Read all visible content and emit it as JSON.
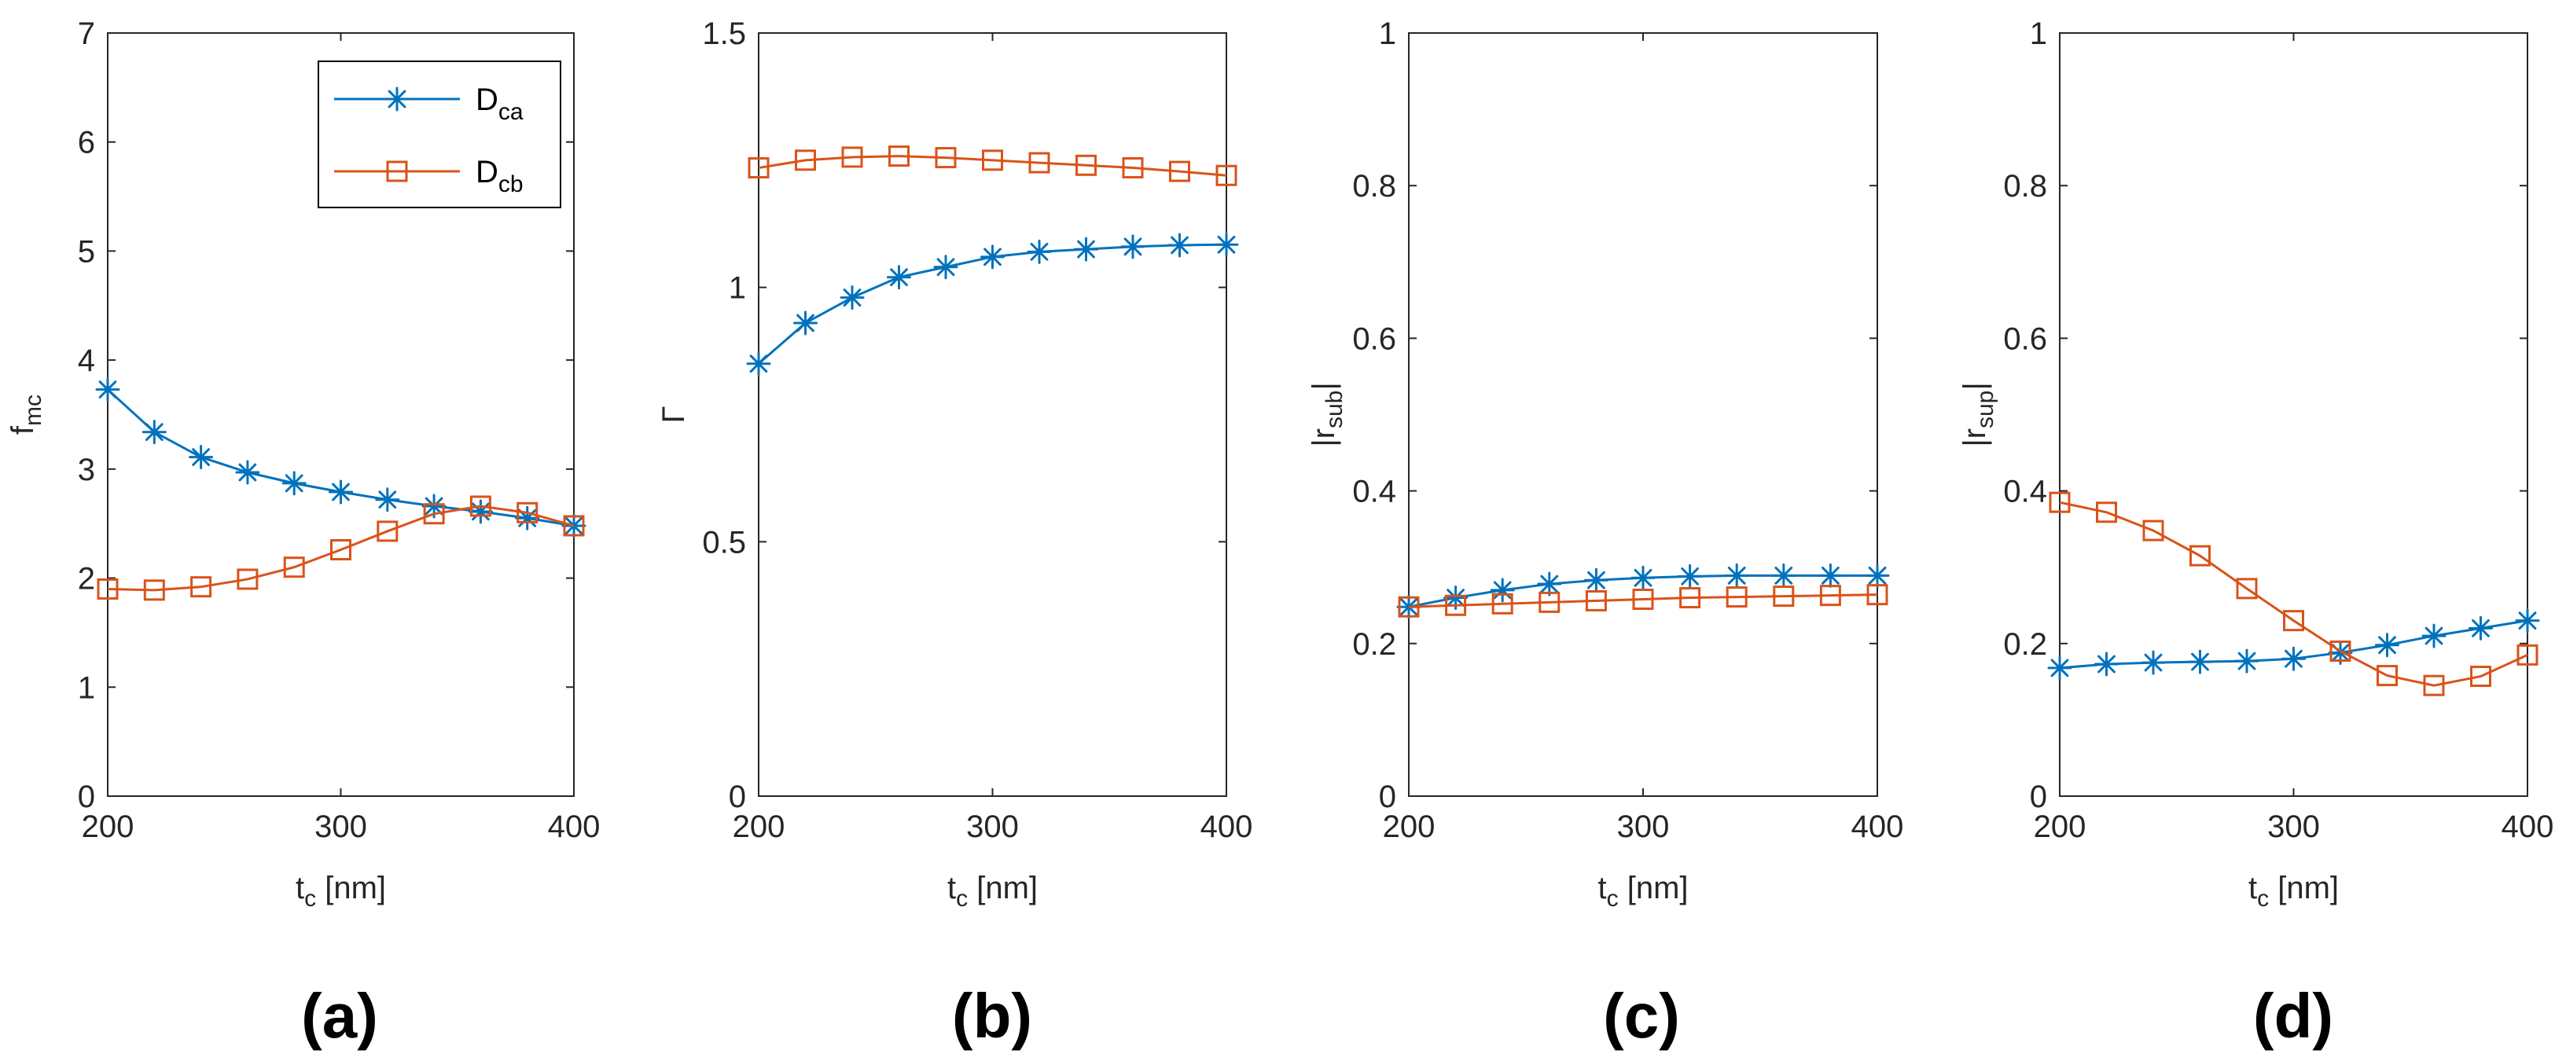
{
  "colors": {
    "D_ca": "#0072BD",
    "D_cb": "#D95319",
    "axis": "#262626"
  },
  "legend": {
    "entries": [
      {
        "series": "D_ca",
        "base": "D",
        "sub": "ca",
        "marker": "asterisk"
      },
      {
        "series": "D_cb",
        "base": "D",
        "sub": "cb",
        "marker": "square"
      }
    ],
    "location": "top-right of panel (a)"
  },
  "chart_data": [
    {
      "type": "line",
      "caption": "(a)",
      "xlabel": {
        "base": "t",
        "sub": "c",
        "rest": " [nm]"
      },
      "ylabel": {
        "base": "f",
        "sub": "mc",
        "rest": ""
      },
      "xlim": [
        200,
        400
      ],
      "ylim": [
        0,
        7
      ],
      "xticks": [
        200,
        300,
        400
      ],
      "yticks": [
        0,
        1,
        2,
        3,
        4,
        5,
        6,
        7
      ],
      "ytick_labels": [
        "0",
        "1",
        "2",
        "3",
        "4",
        "5",
        "6",
        "7"
      ],
      "x": [
        200,
        220,
        240,
        260,
        280,
        300,
        320,
        340,
        360,
        380,
        400
      ],
      "series": [
        {
          "name": "D_ca",
          "marker": "asterisk",
          "values": [
            3.73,
            3.34,
            3.11,
            2.97,
            2.87,
            2.79,
            2.72,
            2.66,
            2.61,
            2.55,
            2.48
          ]
        },
        {
          "name": "D_cb",
          "marker": "square",
          "values": [
            1.9,
            1.89,
            1.92,
            1.99,
            2.1,
            2.26,
            2.43,
            2.59,
            2.66,
            2.6,
            2.48
          ]
        }
      ],
      "legend": true
    },
    {
      "type": "line",
      "caption": "(b)",
      "xlabel": {
        "base": "t",
        "sub": "c",
        "rest": " [nm]"
      },
      "ylabel": {
        "base": "Γ",
        "sub": "",
        "rest": ""
      },
      "xlim": [
        200,
        400
      ],
      "ylim": [
        0,
        1.5
      ],
      "xticks": [
        200,
        300,
        400
      ],
      "yticks": [
        0,
        0.5,
        1,
        1.5
      ],
      "ytick_labels": [
        "0",
        "0.5",
        "1",
        "1.5"
      ],
      "x": [
        200,
        220,
        240,
        260,
        280,
        300,
        320,
        340,
        360,
        380,
        400
      ],
      "series": [
        {
          "name": "D_ca",
          "marker": "asterisk",
          "values": [
            0.85,
            0.93,
            0.98,
            1.02,
            1.04,
            1.06,
            1.07,
            1.075,
            1.08,
            1.083,
            1.084
          ]
        },
        {
          "name": "D_cb",
          "marker": "square",
          "values": [
            1.235,
            1.25,
            1.256,
            1.258,
            1.255,
            1.25,
            1.245,
            1.24,
            1.235,
            1.228,
            1.22
          ]
        }
      ],
      "legend": false
    },
    {
      "type": "line",
      "caption": "(c)",
      "xlabel": {
        "base": "t",
        "sub": "c",
        "rest": " [nm]"
      },
      "ylabel": {
        "base": "|r",
        "sub": "sub",
        "rest": "|"
      },
      "xlim": [
        200,
        400
      ],
      "ylim": [
        0,
        1
      ],
      "xticks": [
        200,
        300,
        400
      ],
      "yticks": [
        0,
        0.2,
        0.4,
        0.6,
        0.8,
        1
      ],
      "ytick_labels": [
        "0",
        "0.2",
        "0.4",
        "0.6",
        "0.8",
        "1"
      ],
      "x": [
        200,
        220,
        240,
        260,
        280,
        300,
        320,
        340,
        360,
        380,
        400
      ],
      "series": [
        {
          "name": "D_ca",
          "marker": "asterisk",
          "values": [
            0.248,
            0.26,
            0.27,
            0.278,
            0.283,
            0.286,
            0.288,
            0.289,
            0.289,
            0.289,
            0.289
          ]
        },
        {
          "name": "D_cb",
          "marker": "square",
          "values": [
            0.248,
            0.25,
            0.252,
            0.254,
            0.256,
            0.258,
            0.26,
            0.261,
            0.262,
            0.263,
            0.264
          ]
        }
      ],
      "legend": false
    },
    {
      "type": "line",
      "caption": "(d)",
      "xlabel": {
        "base": "t",
        "sub": "c",
        "rest": " [nm]"
      },
      "ylabel": {
        "base": "|r",
        "sub": "sup",
        "rest": "|"
      },
      "xlim": [
        200,
        400
      ],
      "ylim": [
        0,
        1
      ],
      "xticks": [
        200,
        300,
        400
      ],
      "yticks": [
        0,
        0.2,
        0.4,
        0.6,
        0.8,
        1
      ],
      "ytick_labels": [
        "0",
        "0.2",
        "0.4",
        "0.6",
        "0.8",
        "1"
      ],
      "x": [
        200,
        220,
        240,
        260,
        280,
        300,
        320,
        340,
        360,
        380,
        400
      ],
      "series": [
        {
          "name": "D_ca",
          "marker": "asterisk",
          "values": [
            0.168,
            0.173,
            0.175,
            0.176,
            0.177,
            0.18,
            0.188,
            0.198,
            0.21,
            0.22,
            0.23
          ]
        },
        {
          "name": "D_cb",
          "marker": "square",
          "values": [
            0.385,
            0.372,
            0.348,
            0.315,
            0.272,
            0.23,
            0.19,
            0.158,
            0.145,
            0.157,
            0.185
          ]
        }
      ],
      "legend": false
    }
  ]
}
